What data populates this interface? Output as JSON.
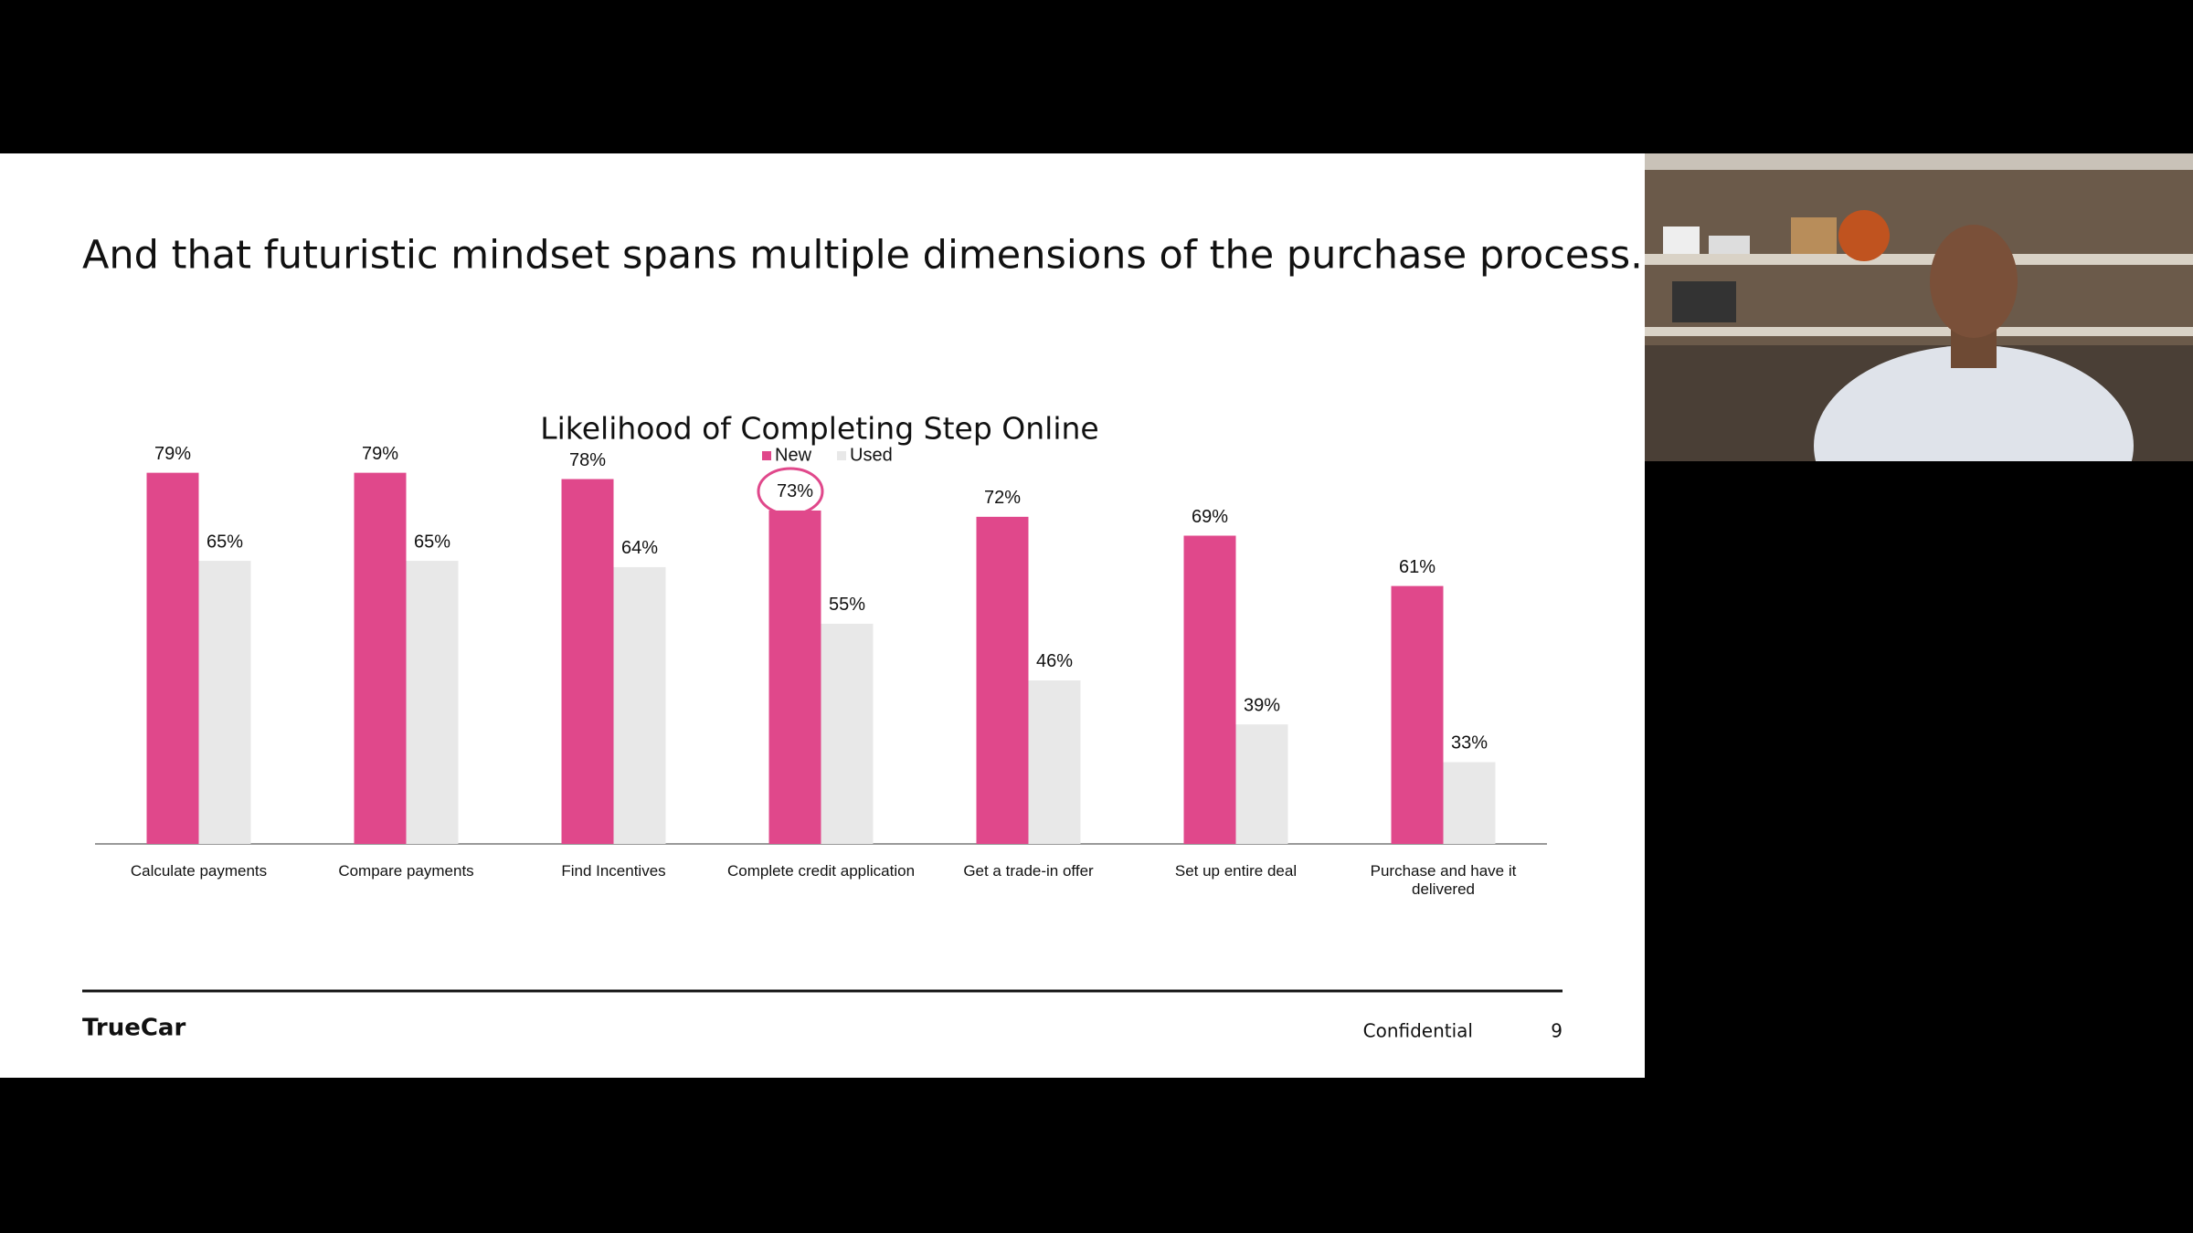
{
  "slide": {
    "title": "And that futuristic mindset spans multiple dimensions of the purchase process.",
    "logo": "TrueCar",
    "footer": "Confidential",
    "page_number": "9"
  },
  "chart_data": {
    "type": "bar",
    "title": "Likelihood of Completing Step Online",
    "categories": [
      "Calculate payments",
      "Compare payments",
      "Find Incentives",
      "Complete credit application",
      "Get a trade-in offer",
      "Set up entire deal",
      "Purchase and have it delivered"
    ],
    "series": [
      {
        "name": "New",
        "color": "#e0488b",
        "values": [
          79,
          79,
          78,
          73,
          72,
          69,
          61
        ],
        "value_labels": [
          "79%",
          "79%",
          "78%",
          "73%",
          "72%",
          "69%",
          "61%"
        ]
      },
      {
        "name": "Used",
        "color": "#e8e8e8",
        "values": [
          65,
          65,
          64,
          55,
          46,
          39,
          33
        ],
        "value_labels": [
          "65%",
          "65%",
          "64%",
          "55%",
          "46%",
          "39%",
          "33%"
        ]
      }
    ],
    "ylim": [
      20,
      100
    ]
  }
}
